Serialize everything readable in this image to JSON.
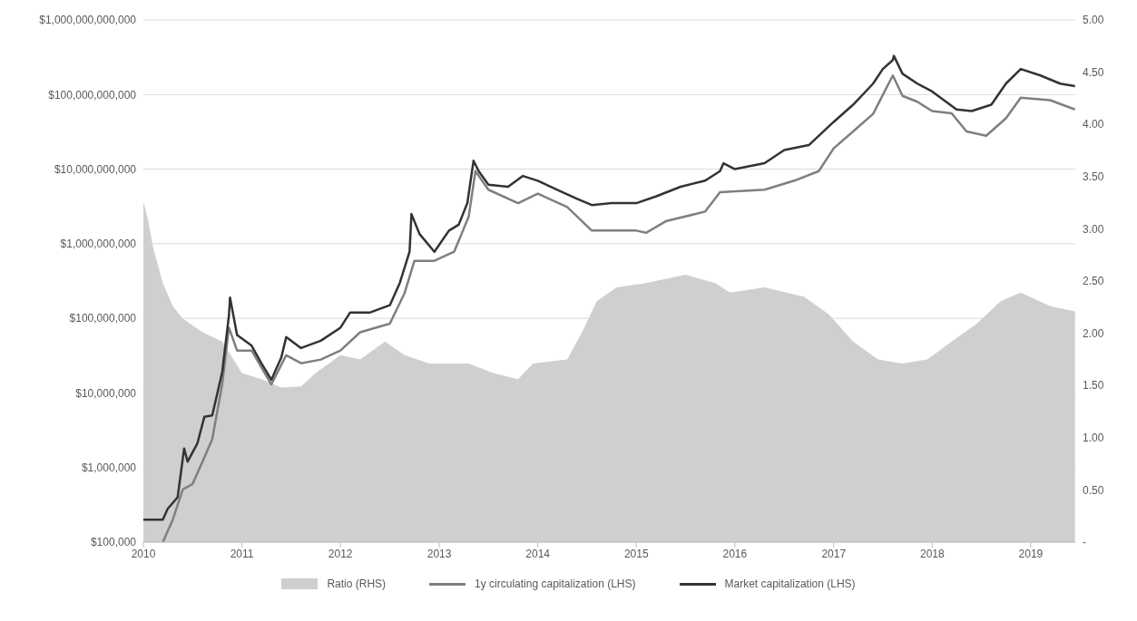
{
  "chart_data": {
    "type": "line",
    "legend": "bottom",
    "grid": "y",
    "log": "y",
    "xlim": [
      "2010-01-01",
      "2019-06-15"
    ],
    "xticks": [
      {
        "value": "2010-01-01",
        "label": "2010"
      },
      {
        "value": "2011-01-01",
        "label": "2011"
      },
      {
        "value": "2012-01-01",
        "label": "2012"
      },
      {
        "value": "2013-01-01",
        "label": "2013"
      },
      {
        "value": "2014-01-01",
        "label": "2014"
      },
      {
        "value": "2015-01-01",
        "label": "2015"
      },
      {
        "value": "2016-01-01",
        "label": "2016"
      },
      {
        "value": "2017-01-01",
        "label": "2017"
      },
      {
        "value": "2018-01-01",
        "label": "2018"
      },
      {
        "value": "2019-01-01",
        "label": "2019"
      }
    ],
    "ylim": [
      100000,
      1000000000000
    ],
    "yticks": [
      {
        "value": 100000,
        "label": "$100,000"
      },
      {
        "value": 1000000,
        "label": "$1,000,000"
      },
      {
        "value": 10000000,
        "label": "$10,000,000"
      },
      {
        "value": 100000000,
        "label": "$100,000,000"
      },
      {
        "value": 1000000000,
        "label": "$1,000,000,000"
      },
      {
        "value": 10000000000,
        "label": "$10,000,000,000"
      },
      {
        "value": 100000000000,
        "label": "$100,000,000,000"
      },
      {
        "value": 1000000000000,
        "label": "$1,000,000,000,000"
      }
    ],
    "y2lim": [
      0,
      5
    ],
    "y2ticks": [
      {
        "value": 0,
        "label": "-"
      },
      {
        "value": 0.5,
        "label": "0.50"
      },
      {
        "value": 1,
        "label": "1.00"
      },
      {
        "value": 1.5,
        "label": "1.50"
      },
      {
        "value": 2,
        "label": "2.00"
      },
      {
        "value": 2.5,
        "label": "2.50"
      },
      {
        "value": 3,
        "label": "3.00"
      },
      {
        "value": 3.5,
        "label": "3.50"
      },
      {
        "value": 4,
        "label": "4.00"
      },
      {
        "value": 4.5,
        "label": "4.50"
      },
      {
        "value": 5,
        "label": "5.00"
      }
    ],
    "series": [
      {
        "name": "Ratio (RHS)",
        "type": "area",
        "axis": "y2",
        "color": "#d0cece",
        "x": [
          "2010-01-01",
          "2010-01-19",
          "2010-02-06",
          "2010-03-14",
          "2010-04-20",
          "2010-05-27",
          "2010-08-08",
          "2010-10-20",
          "2011-01-01",
          "2011-03-14",
          "2011-05-27",
          "2011-08-08",
          "2011-10-01",
          "2012-01-01",
          "2012-03-14",
          "2012-06-14",
          "2012-08-26",
          "2012-11-25",
          "2013-04-20",
          "2013-07-20",
          "2013-10-20",
          "2013-12-14",
          "2014-04-20",
          "2014-06-14",
          "2014-08-08",
          "2014-10-20",
          "2015-02-06",
          "2015-07-02",
          "2015-10-20",
          "2015-12-14",
          "2016-04-20",
          "2016-09-13",
          "2016-12-14",
          "2017-03-14",
          "2017-06-14",
          "2017-09-13",
          "2017-12-14",
          "2018-03-14",
          "2018-06-14",
          "2018-09-13",
          "2018-11-25",
          "2019-03-14",
          "2019-06-14"
        ],
        "values": [
          3.26,
          3.08,
          2.82,
          2.48,
          2.26,
          2.14,
          2.01,
          1.92,
          1.62,
          1.56,
          1.48,
          1.49,
          1.62,
          1.79,
          1.75,
          1.92,
          1.79,
          1.71,
          1.71,
          1.62,
          1.56,
          1.71,
          1.75,
          2.01,
          2.31,
          2.44,
          2.48,
          2.56,
          2.48,
          2.39,
          2.44,
          2.35,
          2.18,
          1.92,
          1.75,
          1.71,
          1.75,
          1.92,
          2.09,
          2.31,
          2.39,
          2.26,
          2.21
        ]
      },
      {
        "name": "1y circulating capitalization (LHS)",
        "color": "#7f7f7f",
        "x": [
          "2010-03-14",
          "2010-04-20",
          "2010-05-27",
          "2010-07-02",
          "2010-08-08",
          "2010-09-13",
          "2010-10-20",
          "2010-11-14",
          "2010-12-14",
          "2011-02-06",
          "2011-04-20",
          "2011-06-14",
          "2011-08-08",
          "2011-10-20",
          "2012-01-01",
          "2012-03-14",
          "2012-07-02",
          "2012-08-26",
          "2012-10-01",
          "2012-12-14",
          "2013-02-25",
          "2013-04-20",
          "2013-05-15",
          "2013-07-02",
          "2013-10-20",
          "2014-01-01",
          "2014-04-20",
          "2014-07-20",
          "2014-10-01",
          "2015-01-01",
          "2015-02-06",
          "2015-04-20",
          "2015-09-13",
          "2015-11-07",
          "2016-04-20",
          "2016-08-08",
          "2016-11-07",
          "2017-01-01",
          "2017-03-14",
          "2017-05-27",
          "2017-08-08",
          "2017-09-13",
          "2017-11-07",
          "2018-01-01",
          "2018-03-14",
          "2018-05-08",
          "2018-07-20",
          "2018-10-01",
          "2018-11-25",
          "2019-03-14",
          "2019-06-14"
        ],
        "values": [
          100000,
          200000,
          510000,
          600000,
          1200000,
          2400000,
          13000000,
          75000000,
          37000000,
          37000000,
          13000000,
          32000000,
          25000000,
          28000000,
          37000000,
          65000000,
          85000000,
          220000000,
          590000000,
          590000000,
          780000000,
          2300000000,
          9400000000,
          5300000000,
          3500000000,
          4700000000,
          3100000000,
          1500000000,
          1500000000,
          1500000000,
          1400000000,
          2000000000,
          2700000000,
          4900000000,
          5300000000,
          7000000000,
          9400000000,
          19000000000,
          32000000000,
          55000000000,
          180000000000,
          96000000000,
          80000000000,
          60000000000,
          56000000000,
          32000000000,
          28000000000,
          48000000000,
          91000000000,
          84000000000,
          63000000000
        ]
      },
      {
        "name": "Market capitalization (LHS)",
        "color": "#333333",
        "x": [
          "2010-01-01",
          "2010-03-14",
          "2010-04-01",
          "2010-05-08",
          "2010-06-01",
          "2010-06-14",
          "2010-07-20",
          "2010-08-15",
          "2010-09-13",
          "2010-10-20",
          "2010-11-14",
          "2010-11-18",
          "2010-12-14",
          "2011-02-06",
          "2011-03-14",
          "2011-04-20",
          "2011-05-27",
          "2011-06-14",
          "2011-08-08",
          "2011-10-20",
          "2012-01-01",
          "2012-02-06",
          "2012-04-20",
          "2012-07-02",
          "2012-08-08",
          "2012-09-13",
          "2012-09-20",
          "2012-10-20",
          "2012-12-14",
          "2013-02-06",
          "2013-03-14",
          "2013-04-15",
          "2013-05-08",
          "2013-05-27",
          "2013-07-02",
          "2013-09-13",
          "2013-11-07",
          "2014-01-01",
          "2014-03-14",
          "2014-05-27",
          "2014-07-20",
          "2014-10-01",
          "2015-01-01",
          "2015-03-14",
          "2015-06-14",
          "2015-09-13",
          "2015-11-07",
          "2015-11-20",
          "2016-01-01",
          "2016-04-20",
          "2016-07-02",
          "2016-10-01",
          "2017-01-01",
          "2017-03-14",
          "2017-05-27",
          "2017-07-02",
          "2017-08-08",
          "2017-08-12",
          "2017-09-13",
          "2017-11-07",
          "2018-01-01",
          "2018-04-01",
          "2018-05-27",
          "2018-08-08",
          "2018-10-01",
          "2018-11-25",
          "2019-02-06",
          "2019-04-20",
          "2019-06-14"
        ],
        "values": [
          200000,
          200000,
          280000,
          400000,
          1800000,
          1200000,
          2100000,
          4800000,
          5000000,
          19000000,
          110000000,
          190000000,
          60000000,
          43000000,
          25000000,
          15000000,
          30000000,
          56000000,
          40000000,
          50000000,
          75000000,
          120000000,
          120000000,
          150000000,
          300000000,
          780000000,
          2500000000,
          1350000000,
          780000000,
          1500000000,
          1800000000,
          3500000000,
          13000000000,
          9400000000,
          6200000000,
          5800000000,
          8100000000,
          7000000000,
          5300000000,
          4000000000,
          3300000000,
          3500000000,
          3500000000,
          4300000000,
          5800000000,
          7000000000,
          9400000000,
          12000000000,
          10000000000,
          12000000000,
          18000000000,
          21000000000,
          43000000000,
          73000000000,
          140000000000,
          220000000000,
          290000000000,
          330000000000,
          190000000000,
          140000000000,
          110000000000,
          63000000000,
          60000000000,
          73000000000,
          140000000000,
          220000000000,
          180000000000,
          140000000000,
          130000000000
        ]
      }
    ]
  }
}
